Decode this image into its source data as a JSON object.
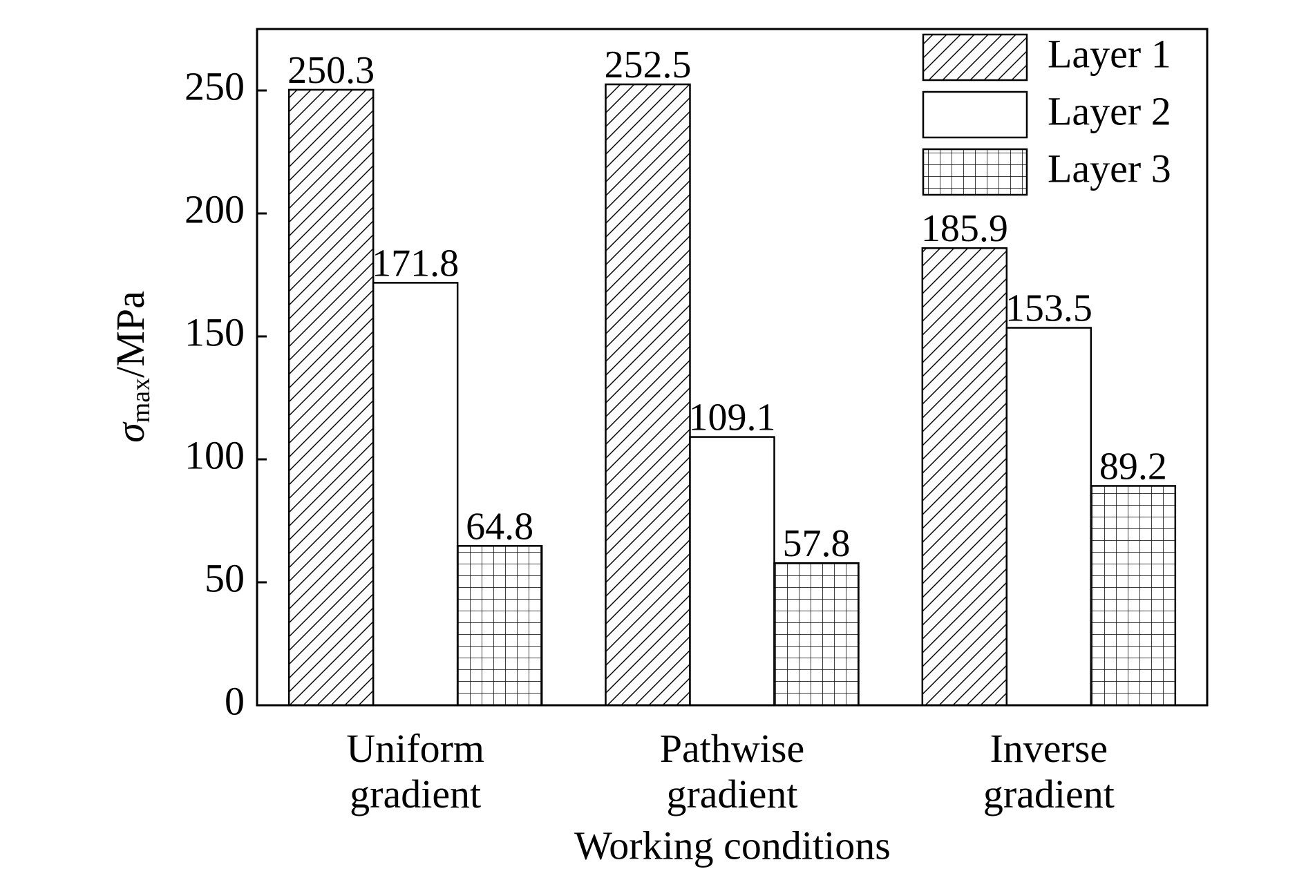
{
  "chart_data": {
    "type": "bar",
    "categories": [
      "Uniform gradient",
      "Pathwise gradient",
      "Inverse gradient"
    ],
    "x_label": "Working conditions",
    "y_label": {
      "symbol": "σ",
      "subscript": "max",
      "unit": "/MPa"
    },
    "series": [
      {
        "name": "Layer 1",
        "color": "#000000",
        "pattern": "hatch",
        "values": [
          250.3,
          252.5,
          185.9
        ]
      },
      {
        "name": "Layer 2",
        "color": "#000000",
        "pattern": "none",
        "values": [
          171.8,
          109.1,
          153.5
        ]
      },
      {
        "name": "Layer 3",
        "color": "#000000",
        "pattern": "grid",
        "values": [
          64.8,
          57.8,
          89.2
        ]
      }
    ],
    "ylim": [
      0,
      275
    ],
    "yticks": [
      0,
      50,
      100,
      150,
      200,
      250
    ],
    "legend": "upper right"
  }
}
